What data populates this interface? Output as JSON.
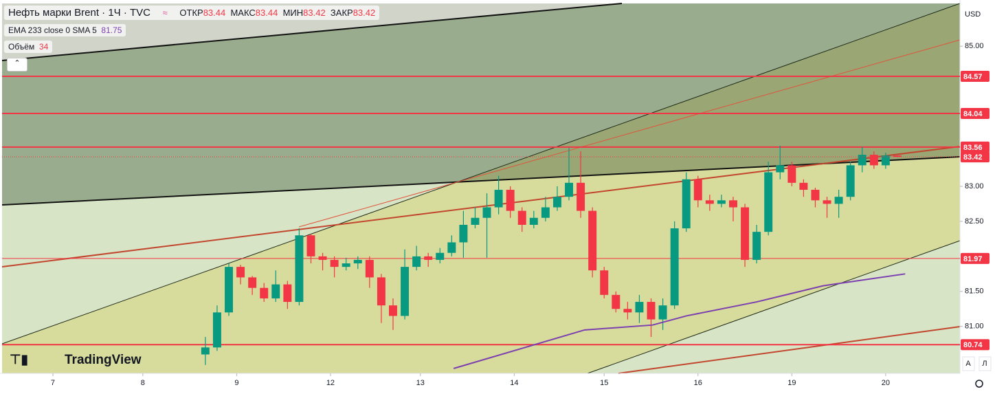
{
  "chart_data": {
    "type": "candlestick",
    "title": "Нефть марки Brent · 1Ч · TVC",
    "ohlc_labels": {
      "open": "ОТКР",
      "high": "МАКС",
      "low": "МИН",
      "close": "ЗАКР"
    },
    "currency": "USD",
    "logo": "TradingView",
    "scale_buttons": [
      "А",
      "Л"
    ],
    "up_color": "#089981",
    "down_color": "#f23645",
    "x": [
      52,
      55,
      58,
      61,
      64,
      67,
      70,
      73,
      76,
      79,
      82,
      85,
      88,
      91,
      94,
      97,
      100,
      103,
      106,
      109,
      112,
      115,
      118,
      121,
      124,
      127,
      130,
      133,
      136,
      139,
      142,
      145,
      148,
      151,
      154,
      157,
      160,
      163,
      166,
      169,
      172,
      175,
      178,
      181,
      184,
      187,
      190,
      193,
      196,
      199,
      202,
      205,
      208,
      211,
      214,
      217,
      220,
      223,
      226,
      229
    ],
    "open": [
      80.6,
      80.7,
      81.2,
      81.85,
      81.7,
      81.55,
      81.4,
      81.6,
      81.35,
      82.3,
      82.0,
      81.95,
      81.85,
      81.9,
      81.95,
      81.7,
      81.3,
      81.15,
      81.85,
      82.0,
      81.95,
      82.05,
      82.2,
      82.45,
      82.55,
      82.7,
      82.95,
      82.65,
      82.45,
      82.55,
      82.7,
      82.85,
      83.05,
      82.65,
      81.8,
      81.45,
      81.25,
      81.2,
      81.35,
      81.1,
      81.3,
      82.4,
      83.1,
      82.8,
      82.75,
      82.8,
      82.7,
      81.95,
      82.35,
      83.2,
      83.3,
      83.05,
      82.95,
      82.8,
      82.75,
      82.85,
      83.3,
      83.45,
      83.3,
      83.44
    ],
    "high": [
      80.85,
      81.3,
      81.9,
      81.88,
      81.72,
      81.62,
      81.8,
      81.65,
      82.4,
      82.32,
      82.05,
      82.0,
      81.98,
      82.0,
      82.0,
      81.75,
      81.4,
      82.1,
      82.15,
      82.05,
      82.12,
      82.3,
      82.65,
      82.7,
      82.9,
      83.15,
      83.0,
      82.7,
      82.65,
      82.85,
      83.0,
      83.55,
      83.5,
      82.7,
      81.85,
      81.5,
      81.35,
      81.45,
      81.4,
      81.4,
      82.5,
      83.2,
      83.15,
      82.88,
      82.88,
      82.85,
      82.75,
      82.45,
      83.35,
      83.58,
      83.35,
      83.1,
      82.98,
      82.85,
      82.95,
      83.35,
      83.56,
      83.5,
      83.48,
      83.44
    ],
    "low": [
      80.45,
      80.65,
      81.15,
      81.6,
      81.45,
      81.35,
      81.35,
      81.25,
      81.3,
      81.9,
      81.8,
      81.7,
      81.8,
      81.82,
      81.55,
      81.05,
      80.95,
      81.1,
      81.8,
      81.85,
      81.9,
      82.0,
      81.98,
      82.4,
      81.98,
      82.6,
      82.55,
      82.35,
      82.4,
      82.5,
      82.65,
      82.8,
      82.55,
      81.7,
      81.4,
      81.2,
      81.1,
      81.05,
      80.85,
      80.95,
      81.25,
      82.35,
      82.7,
      82.65,
      82.7,
      82.5,
      81.85,
      81.9,
      82.3,
      83.1,
      83.0,
      82.85,
      82.7,
      82.55,
      82.55,
      82.8,
      83.2,
      83.25,
      83.25,
      83.42
    ],
    "close": [
      80.7,
      81.2,
      81.85,
      81.7,
      81.55,
      81.4,
      81.6,
      81.35,
      82.3,
      82.0,
      81.95,
      81.85,
      81.9,
      81.95,
      81.7,
      81.3,
      81.15,
      81.85,
      82.0,
      81.95,
      82.05,
      82.2,
      82.45,
      82.55,
      82.7,
      82.95,
      82.65,
      82.45,
      82.55,
      82.7,
      82.85,
      83.05,
      82.65,
      81.8,
      81.45,
      81.25,
      81.2,
      81.35,
      81.1,
      81.3,
      82.4,
      83.1,
      82.8,
      82.75,
      82.8,
      82.7,
      81.95,
      82.35,
      83.2,
      83.3,
      83.05,
      82.95,
      82.8,
      82.75,
      82.85,
      83.3,
      83.45,
      83.3,
      83.44,
      83.42
    ],
    "ema": {
      "name": "EMA 233 close 0 SMA 5",
      "color": "#7b3fb0",
      "x": [
        115.5,
        149,
        166.4,
        175,
        193,
        210,
        231
      ],
      "values": [
        80.4,
        80.95,
        81.02,
        81.15,
        81.35,
        81.58,
        81.75
      ]
    },
    "volume": {
      "name": "Объём",
      "value": 34
    },
    "levels": [
      {
        "value": 84.57,
        "color": "#f23645"
      },
      {
        "value": 84.04,
        "color": "#f23645"
      },
      {
        "value": 83.56,
        "color": "#f23645"
      },
      {
        "value": 81.97,
        "color": "#f23645"
      },
      {
        "value": 80.74,
        "color": "#f23645"
      }
    ],
    "xlim": [
      0,
      245
    ],
    "xticks": [
      {
        "value": 13,
        "label": "7"
      },
      {
        "value": 36,
        "label": "8"
      },
      {
        "value": 60,
        "label": "9"
      },
      {
        "value": 84,
        "label": "12"
      },
      {
        "value": 107,
        "label": "13"
      },
      {
        "value": 131,
        "label": "14"
      },
      {
        "value": 154,
        "label": "15"
      },
      {
        "value": 178,
        "label": "16"
      },
      {
        "value": 202,
        "label": "19"
      },
      {
        "value": 226,
        "label": "20"
      }
    ],
    "ylim": [
      80.33,
      85.61
    ],
    "yticks": [
      {
        "value": 85,
        "label": "85.00"
      },
      {
        "value": 83,
        "label": "83.00"
      },
      {
        "value": 82.5,
        "label": "82.50"
      },
      {
        "value": 81.5,
        "label": "81.50"
      },
      {
        "value": 81,
        "label": "81.00"
      }
    ]
  }
}
